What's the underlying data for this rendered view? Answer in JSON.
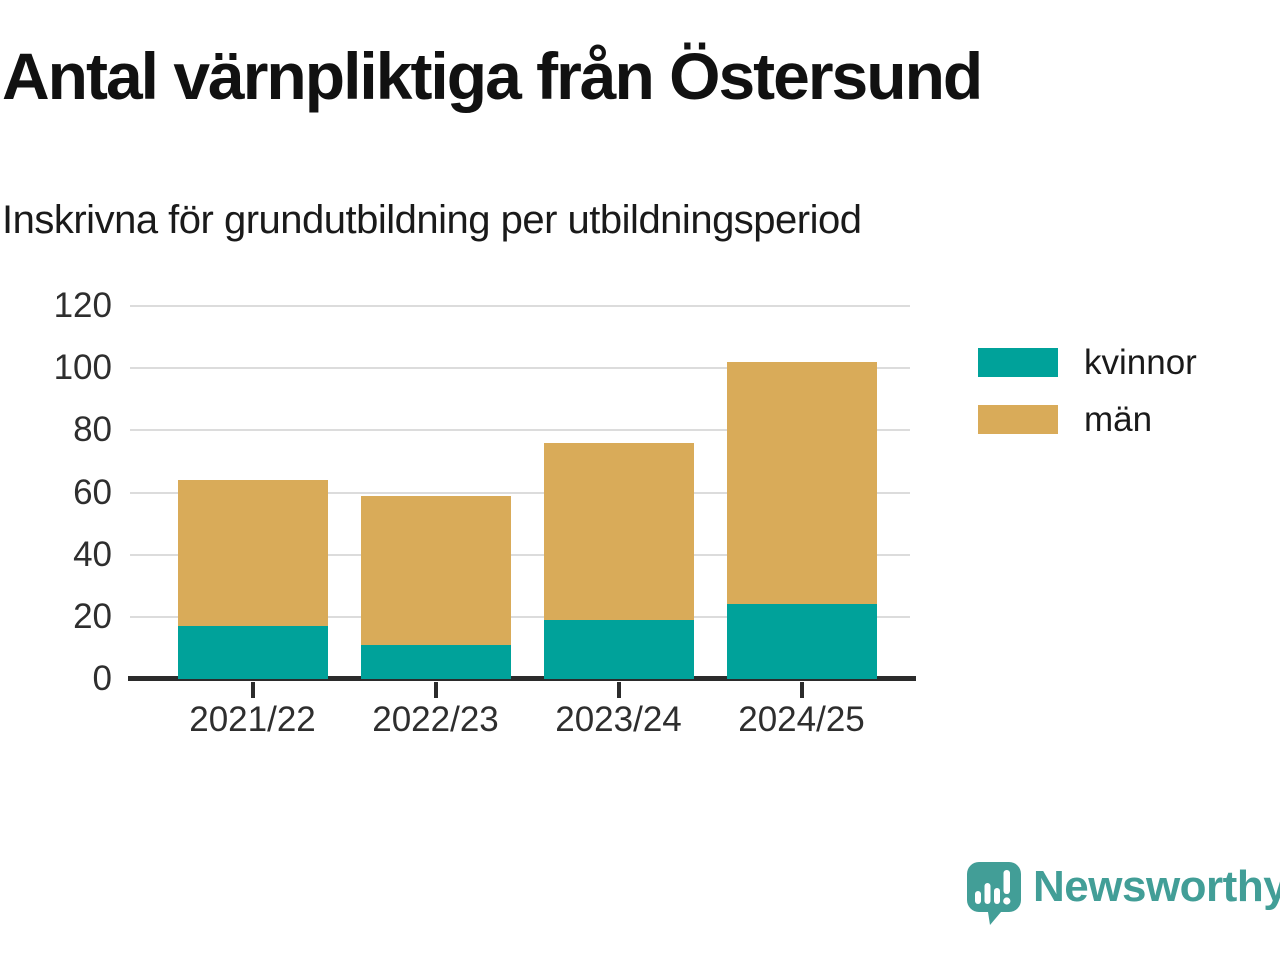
{
  "header": {
    "title": "Antal värnpliktiga från Östersund",
    "subtitle": "Inskrivna för grundutbildning per utbildningsperiod"
  },
  "chart_data": {
    "type": "bar",
    "stacked": true,
    "title": "Antal värnpliktiga från Östersund",
    "subtitle": "Inskrivna för grundutbildning per utbildningsperiod",
    "categories": [
      "2021/22",
      "2022/23",
      "2023/24",
      "2024/25"
    ],
    "series": [
      {
        "name": "kvinnor",
        "color": "#00a29a",
        "values": [
          17,
          11,
          19,
          24
        ]
      },
      {
        "name": "män",
        "color": "#d9ab59",
        "values": [
          47,
          48,
          57,
          78
        ]
      }
    ],
    "totals": [
      64,
      59,
      76,
      102
    ],
    "xlabel": "",
    "ylabel": "",
    "ylim": [
      0,
      120
    ],
    "yticks": [
      0,
      20,
      40,
      60,
      80,
      100,
      120
    ],
    "grid": true,
    "legend_position": "right"
  },
  "colors": {
    "kvinnor": "#00a29a",
    "man": "#d9ab59",
    "grid": "#dcdcdc",
    "axis": "#2b2b2b",
    "text": "#1a1a1a",
    "brand_teal": "#429e97"
  },
  "branding": {
    "logo_text": "Newsworthy"
  }
}
